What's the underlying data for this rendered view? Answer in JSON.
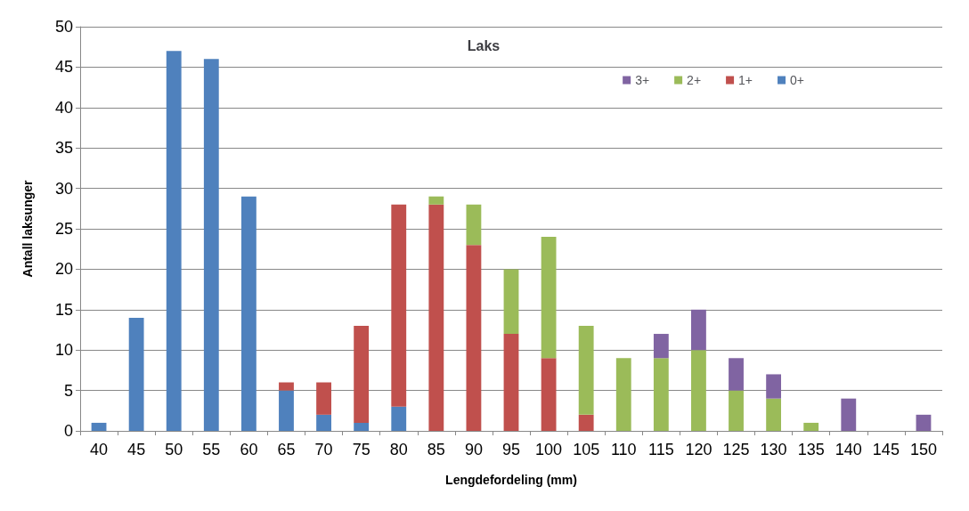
{
  "chart_data": {
    "type": "bar",
    "title": "Laks",
    "xlabel": "Lengdefordeling (mm)",
    "ylabel": "Antall laksunger",
    "stacked": true,
    "grid": "y",
    "legend": "top right",
    "categories": [
      "40",
      "45",
      "50",
      "55",
      "60",
      "65",
      "70",
      "75",
      "80",
      "85",
      "90",
      "95",
      "100",
      "105",
      "110",
      "115",
      "120",
      "125",
      "130",
      "135",
      "140",
      "145",
      "150"
    ],
    "ylim": [
      0,
      50
    ],
    "yticks": [
      0,
      5,
      10,
      15,
      20,
      25,
      30,
      35,
      40,
      45,
      50
    ],
    "series": [
      {
        "name": "0+",
        "color": "#4f81bd",
        "values": [
          1,
          14,
          47,
          46,
          29,
          5,
          2,
          1,
          3,
          0,
          0,
          0,
          0,
          0,
          0,
          0,
          0,
          0,
          0,
          0,
          0,
          0,
          0
        ]
      },
      {
        "name": "1+",
        "color": "#c0504d",
        "values": [
          0,
          0,
          0,
          0,
          0,
          1,
          4,
          12,
          25,
          28,
          23,
          12,
          9,
          2,
          0,
          0,
          0,
          0,
          0,
          0,
          0,
          0,
          0
        ]
      },
      {
        "name": "2+",
        "color": "#9bbb59",
        "values": [
          0,
          0,
          0,
          0,
          0,
          0,
          0,
          0,
          0,
          1,
          5,
          8,
          15,
          11,
          9,
          9,
          10,
          5,
          4,
          1,
          0,
          0,
          0
        ]
      },
      {
        "name": "3+",
        "color": "#8064a2",
        "values": [
          0,
          0,
          0,
          0,
          0,
          0,
          0,
          0,
          0,
          0,
          0,
          0,
          0,
          0,
          0,
          3,
          5,
          4,
          3,
          0,
          4,
          0,
          2
        ]
      }
    ]
  }
}
